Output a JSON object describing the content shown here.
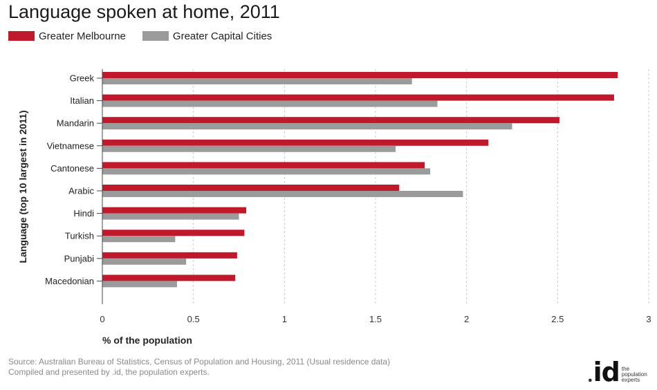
{
  "title": "Language spoken at home, 2011",
  "colors": {
    "melbourne": "#c0192b",
    "capitals": "#9b9b9b",
    "grid": "#c8c8c8"
  },
  "source_line1": "Source: Australian Bureau of Statistics, Census of Population and Housing, 2011 (Usual residence data)",
  "source_line2": "Compiled and presented by .id, the population experts.",
  "logo": {
    "dot": "●",
    "mark": "id",
    "tagline": "the population experts"
  },
  "chart_data": {
    "type": "bar",
    "orientation": "horizontal",
    "categories": [
      "Greek",
      "Italian",
      "Mandarin",
      "Vietnamese",
      "Cantonese",
      "Arabic",
      "Hindi",
      "Turkish",
      "Punjabi",
      "Macedonian"
    ],
    "series": [
      {
        "name": "Greater Melbourne",
        "values": [
          2.83,
          2.81,
          2.51,
          2.12,
          1.77,
          1.63,
          0.79,
          0.78,
          0.74,
          0.73
        ]
      },
      {
        "name": "Greater Capital Cities",
        "values": [
          1.7,
          1.84,
          2.25,
          1.61,
          1.8,
          1.98,
          0.75,
          0.4,
          0.46,
          0.41
        ]
      }
    ],
    "xlabel": "% of the population",
    "ylabel": "Language (top 10 largest in 2011)",
    "xlim": [
      0,
      3
    ],
    "xticks": [
      "0",
      "0.5",
      "1",
      "1.5",
      "2",
      "2.5",
      "3"
    ],
    "grid": "vertical dashed",
    "legend": "top-left"
  }
}
